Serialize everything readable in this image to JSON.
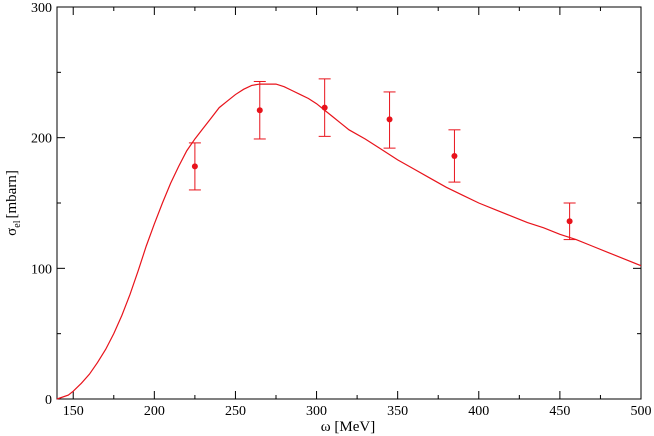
{
  "chart_data": {
    "type": "line",
    "title": "",
    "xlabel": "ω [MeV]",
    "ylabel": {
      "main": "σ",
      "sub": "el",
      "unit": "[mbarn]"
    },
    "xlim": [
      140,
      500
    ],
    "ylim": [
      0,
      300
    ],
    "x_ticks": [
      150,
      200,
      250,
      300,
      350,
      400,
      450,
      500
    ],
    "y_ticks": [
      0,
      100,
      200,
      300
    ],
    "grid": false,
    "legend": "none",
    "color": "#e8131b",
    "series": [
      {
        "kind": "line",
        "x": [
          140,
          147,
          150,
          155,
          160,
          165,
          170,
          175,
          180,
          185,
          190,
          195,
          200,
          205,
          210,
          215,
          220,
          225,
          230,
          235,
          240,
          245,
          250,
          255,
          260,
          265,
          270,
          275,
          280,
          285,
          290,
          295,
          300,
          305,
          310,
          315,
          320,
          330,
          340,
          350,
          360,
          370,
          380,
          390,
          400,
          410,
          420,
          430,
          440,
          450,
          460,
          470,
          480,
          490,
          500
        ],
        "y": [
          0,
          3,
          6,
          12,
          19,
          28,
          38,
          50,
          64,
          80,
          98,
          117,
          134,
          150,
          165,
          178,
          190,
          199,
          207,
          215,
          223,
          228,
          233,
          237,
          240,
          241,
          241,
          241,
          239,
          236,
          233,
          230,
          226,
          221,
          216,
          211,
          206,
          199,
          191,
          183,
          176,
          169,
          162,
          156,
          150,
          145,
          140,
          135,
          131,
          126,
          122,
          117,
          112,
          107,
          102
        ]
      },
      {
        "kind": "errorbar",
        "x": [
          225,
          265,
          305,
          345,
          385,
          456
        ],
        "y": [
          178,
          221,
          223,
          214,
          186,
          136
        ],
        "yerr_low": [
          160,
          199,
          201,
          192,
          166,
          122
        ],
        "yerr_high": [
          196,
          243,
          245,
          235,
          206,
          150
        ]
      }
    ]
  }
}
